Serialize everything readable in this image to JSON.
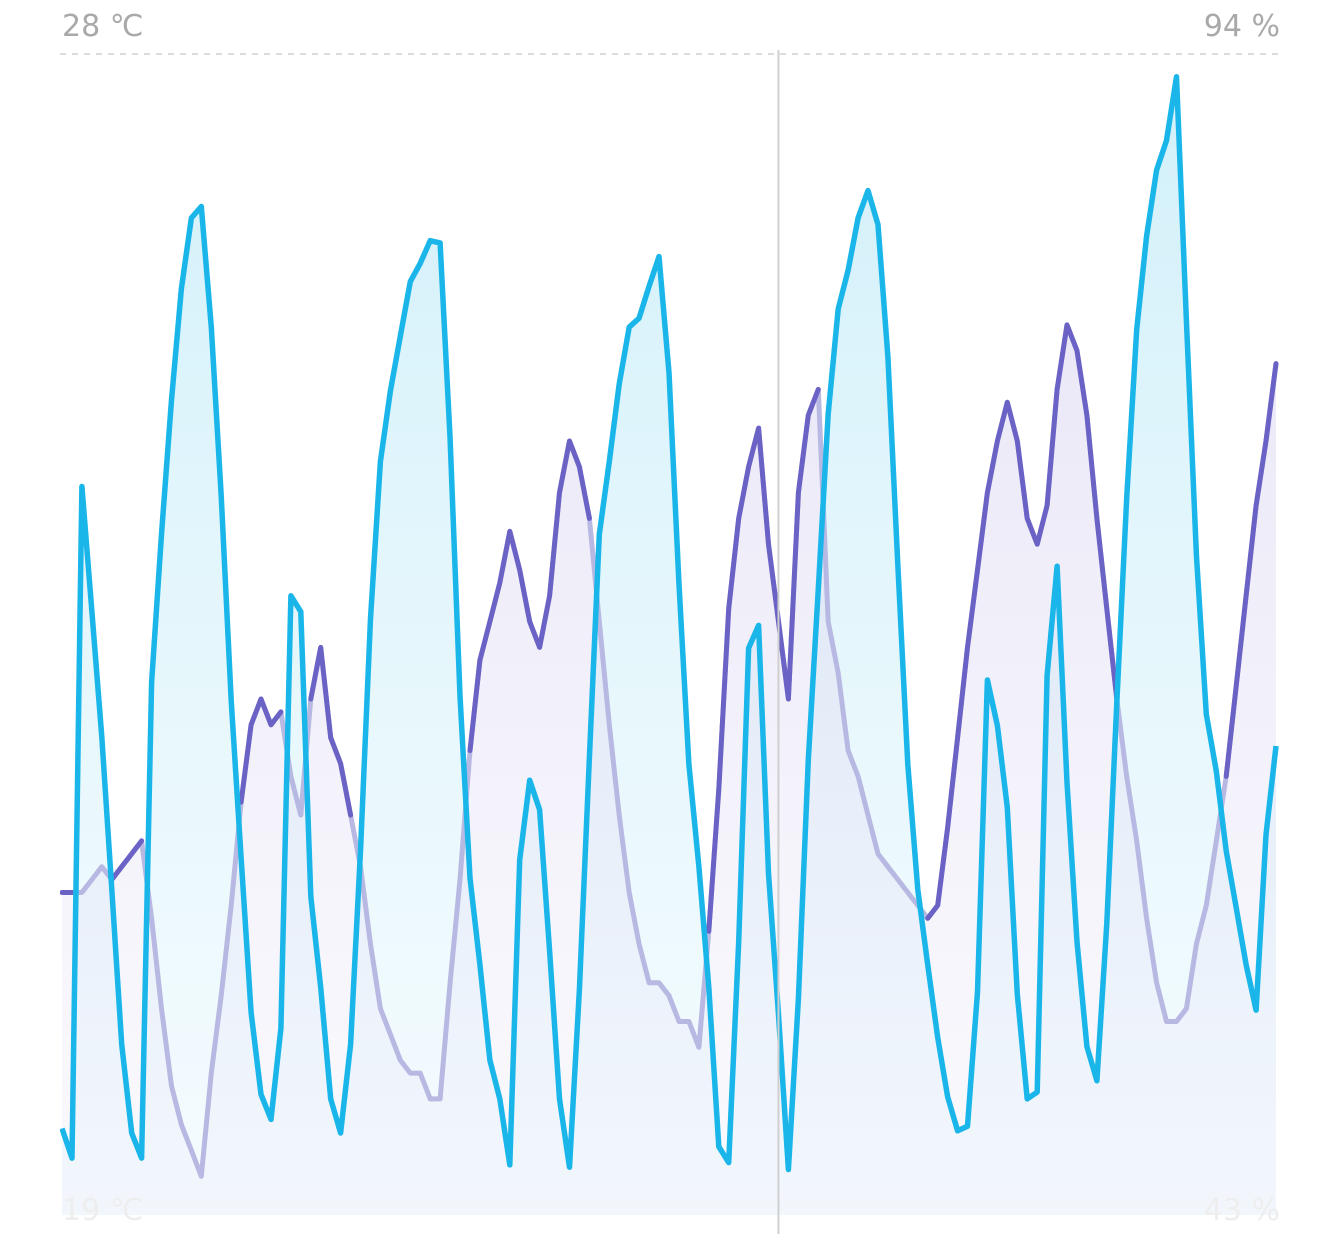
{
  "chart_data": {
    "type": "line",
    "title": "",
    "xlabel": "",
    "ylabel": "",
    "left_axis": {
      "top_label": "28 ℃",
      "bottom_label": "19 ℃",
      "ylim": [
        19,
        28
      ]
    },
    "right_axis": {
      "top_label": "94 %",
      "bottom_label": "43 %",
      "ylim": [
        43,
        94
      ]
    },
    "grid": {
      "top_reference_line": "dashed"
    },
    "x": [
      0,
      1,
      2,
      3,
      4,
      5,
      6,
      7,
      8,
      9,
      10,
      11,
      12,
      13,
      14,
      15,
      16,
      17,
      18,
      19,
      20,
      21,
      22,
      23,
      24,
      25,
      26,
      27,
      28,
      29,
      30,
      31,
      32,
      33,
      34,
      35,
      36,
      37,
      38,
      39,
      40,
      41,
      42,
      43,
      44,
      45,
      46,
      47,
      48,
      49,
      50,
      51,
      52,
      53,
      54,
      55,
      56,
      57,
      58,
      59,
      60,
      61,
      62,
      63,
      64,
      65,
      66,
      67,
      68,
      69,
      70,
      71,
      72,
      73,
      74,
      75,
      76,
      77,
      78,
      79,
      80,
      81,
      82,
      83,
      84,
      85,
      86,
      87,
      88,
      89,
      90,
      91,
      92,
      93,
      94,
      95,
      96,
      97,
      98,
      99,
      100,
      101,
      102,
      103,
      104,
      105,
      106,
      107,
      108,
      109,
      110,
      111,
      112,
      113,
      114,
      115,
      116,
      117,
      118,
      119,
      120,
      121,
      122
    ],
    "cursor_x": 72,
    "series": [
      {
        "color": "#1ab6ea",
        "axis": "right",
        "fill": true,
        "values": [
          46.8,
          45.5,
          75.0,
          69.5,
          64.0,
          57.3,
          50.5,
          46.6,
          45.5,
          66.4,
          72.9,
          78.8,
          83.7,
          86.8,
          87.3,
          82.0,
          74.6,
          65.6,
          58.7,
          51.9,
          48.3,
          47.2,
          51.2,
          70.2,
          69.5,
          57.0,
          53.0,
          48.1,
          46.6,
          50.5,
          59.0,
          69.2,
          76.1,
          79.2,
          81.6,
          84.0,
          84.8,
          85.8,
          85.7,
          77.1,
          65.8,
          57.8,
          54.0,
          49.8,
          48.1,
          45.2,
          58.6,
          62.1,
          60.8,
          54.6,
          48.1,
          45.1,
          52.9,
          63.1,
          72.9,
          76.1,
          79.5,
          82.0,
          82.4,
          83.8,
          85.1,
          80.0,
          70.7,
          62.8,
          58.3,
          53.0,
          46.0,
          45.3,
          55.0,
          67.9,
          68.9,
          58.0,
          51.8,
          45.0,
          52.5,
          63.0,
          70.5,
          78.2,
          82.8,
          84.5,
          86.8,
          88.0,
          86.5,
          80.7,
          71.5,
          62.8,
          57.3,
          54.0,
          50.8,
          48.2,
          46.7,
          46.9,
          52.8,
          66.5,
          64.5,
          60.9,
          52.7,
          48.1,
          48.4,
          66.7,
          71.5,
          62.0,
          55.0,
          50.4,
          48.9,
          55.8,
          65.5,
          74.5,
          81.9,
          86.0,
          88.9,
          90.2,
          93.0,
          82.3,
          72.0,
          65.0,
          62.5,
          59.0,
          56.5,
          54.0,
          52.0,
          59.7,
          63.6
        ]
      },
      {
        "color": "#6b62c5",
        "axis": "left",
        "fill": true,
        "faded_color": "#b7b9e2",
        "values": [
          21.5,
          21.5,
          21.5,
          21.6,
          21.7,
          21.6,
          21.7,
          21.8,
          21.9,
          21.3,
          20.6,
          20.0,
          19.7,
          19.5,
          19.3,
          20.1,
          20.7,
          21.4,
          22.2,
          22.8,
          23.0,
          22.8,
          22.9,
          22.4,
          22.1,
          23.0,
          23.4,
          22.7,
          22.5,
          22.1,
          21.7,
          21.1,
          20.6,
          20.4,
          20.2,
          20.1,
          20.1,
          19.9,
          19.9,
          20.8,
          21.6,
          22.6,
          23.3,
          23.6,
          23.9,
          24.3,
          24.0,
          23.6,
          23.4,
          23.8,
          24.6,
          25.0,
          24.8,
          24.4,
          23.6,
          22.8,
          22.1,
          21.5,
          21.1,
          20.8,
          20.8,
          20.7,
          20.5,
          20.5,
          20.3,
          21.2,
          22.3,
          23.7,
          24.4,
          24.8,
          25.1,
          24.2,
          23.6,
          23.0,
          24.6,
          25.2,
          25.4,
          23.6,
          23.2,
          22.6,
          22.4,
          22.1,
          21.8,
          21.7,
          21.6,
          21.5,
          21.4,
          21.3,
          21.4,
          22.0,
          22.7,
          23.4,
          24.0,
          24.6,
          25.0,
          25.3,
          25.0,
          24.4,
          24.2,
          24.5,
          25.4,
          25.9,
          25.7,
          25.2,
          24.4,
          23.7,
          23.0,
          22.4,
          21.9,
          21.3,
          20.8,
          20.5,
          20.5,
          20.6,
          21.1,
          21.4,
          21.9,
          22.4,
          23.1,
          23.8,
          24.5,
          25.0,
          25.6
        ]
      }
    ]
  }
}
